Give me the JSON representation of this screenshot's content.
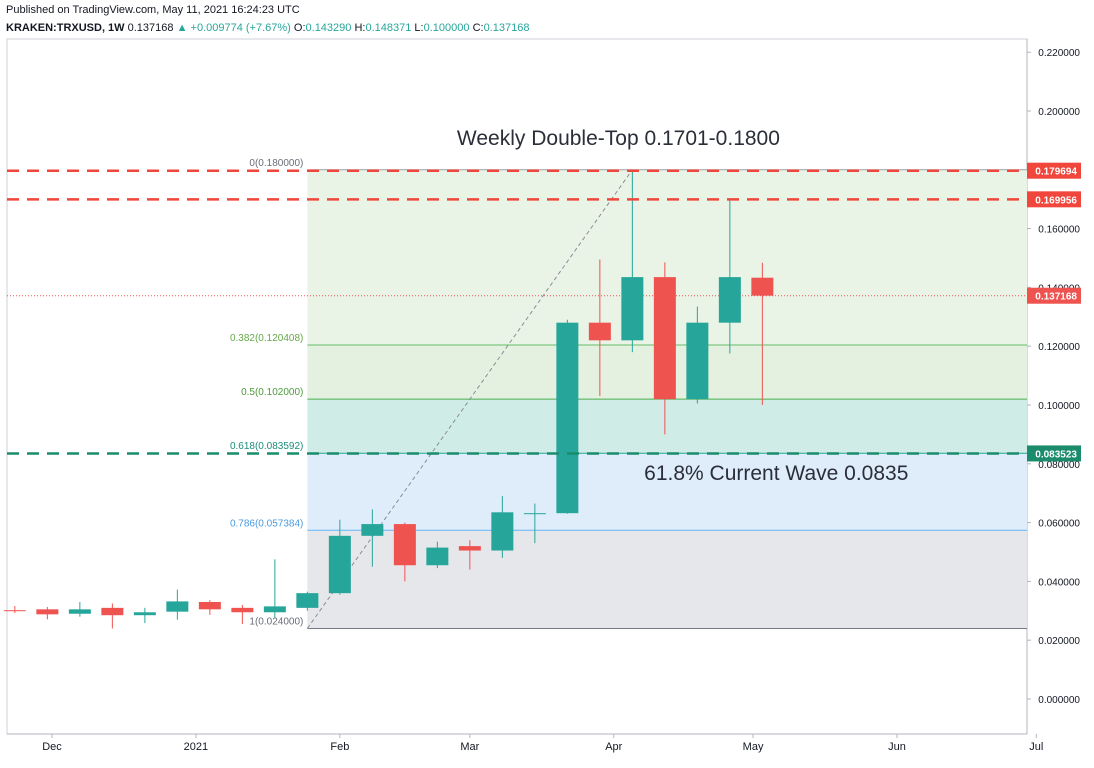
{
  "header": {
    "published": "Published on TradingView.com, May 11, 2021 16:24:23 UTC",
    "symbol": "KRAKEN:TRXUSD, 1W",
    "last": "0.137168",
    "change": "▲ +0.009774 (+7.67%)",
    "o_label": "O:",
    "o_value": "0.143290",
    "h_label": "H:",
    "h_value": "0.148371",
    "l_label": "L:",
    "l_value": "0.100000",
    "c_label": "C:",
    "c_value": "0.137168"
  },
  "colors": {
    "up": "#26a69a",
    "down": "#ef5350",
    "resistance": "#f0463c",
    "support": "#1a8b6b",
    "fib_0_382": "#e9f4e6",
    "fib_382_5": "#e4f1e0",
    "fib_5_618": "#d0ece6",
    "fib_618_786": "#dfedfb",
    "fib_786_1": "#e6e7ea"
  },
  "chart_data": {
    "type": "candlestick",
    "timeframe": "1W",
    "ylim": [
      -0.01,
      0.22
    ],
    "y_ticks": [
      "0.000000",
      "0.020000",
      "0.040000",
      "0.060000",
      "0.080000",
      "0.100000",
      "0.120000",
      "0.140000",
      "0.160000",
      "0.180000",
      "0.200000",
      "0.220000"
    ],
    "y_tick_values": [
      0,
      0.02,
      0.04,
      0.06,
      0.08,
      0.1,
      0.12,
      0.14,
      0.16,
      0.18,
      0.2,
      0.22
    ],
    "x_ticks": [
      "Dec",
      "2021",
      "Feb",
      "Mar",
      "Apr",
      "May",
      "Jun",
      "Jul"
    ],
    "x_tick_dates": [
      "2020-12-01",
      "2021-01-01",
      "2021-02-01",
      "2021-03-01",
      "2021-04-01",
      "2021-05-01",
      "2021-06-01",
      "2021-07-01"
    ],
    "candles": [
      {
        "date": "2020-11-23",
        "o": 0.0302,
        "h": 0.0316,
        "l": 0.0292,
        "c": 0.0301
      },
      {
        "date": "2020-11-30",
        "o": 0.0305,
        "h": 0.0313,
        "l": 0.0271,
        "c": 0.0288
      },
      {
        "date": "2020-12-07",
        "o": 0.029,
        "h": 0.033,
        "l": 0.028,
        "c": 0.0305
      },
      {
        "date": "2020-12-14",
        "o": 0.031,
        "h": 0.0325,
        "l": 0.024,
        "c": 0.0285
      },
      {
        "date": "2020-12-21",
        "o": 0.0285,
        "h": 0.031,
        "l": 0.0258,
        "c": 0.0295
      },
      {
        "date": "2020-12-28",
        "o": 0.0297,
        "h": 0.0372,
        "l": 0.027,
        "c": 0.0332
      },
      {
        "date": "2021-01-04",
        "o": 0.033,
        "h": 0.0336,
        "l": 0.0286,
        "c": 0.0305
      },
      {
        "date": "2021-01-11",
        "o": 0.031,
        "h": 0.032,
        "l": 0.0255,
        "c": 0.0295
      },
      {
        "date": "2021-01-18",
        "o": 0.0295,
        "h": 0.0475,
        "l": 0.0275,
        "c": 0.0315
      },
      {
        "date": "2021-01-25",
        "o": 0.031,
        "h": 0.0365,
        "l": 0.03,
        "c": 0.036
      },
      {
        "date": "2021-02-01",
        "o": 0.036,
        "h": 0.061,
        "l": 0.0355,
        "c": 0.0555
      },
      {
        "date": "2021-02-08",
        "o": 0.0555,
        "h": 0.0645,
        "l": 0.045,
        "c": 0.0595
      },
      {
        "date": "2021-02-15",
        "o": 0.0595,
        "h": 0.06,
        "l": 0.04,
        "c": 0.0455
      },
      {
        "date": "2021-02-22",
        "o": 0.0455,
        "h": 0.0535,
        "l": 0.0445,
        "c": 0.0515
      },
      {
        "date": "2021-03-01",
        "o": 0.052,
        "h": 0.054,
        "l": 0.044,
        "c": 0.0505
      },
      {
        "date": "2021-03-08",
        "o": 0.0505,
        "h": 0.069,
        "l": 0.048,
        "c": 0.0635
      },
      {
        "date": "2021-03-15",
        "o": 0.063,
        "h": 0.0665,
        "l": 0.053,
        "c": 0.0632
      },
      {
        "date": "2021-03-22",
        "o": 0.0632,
        "h": 0.129,
        "l": 0.063,
        "c": 0.128
      },
      {
        "date": "2021-03-29",
        "o": 0.128,
        "h": 0.1495,
        "l": 0.103,
        "c": 0.122
      },
      {
        "date": "2021-04-05",
        "o": 0.122,
        "h": 0.1797,
        "l": 0.118,
        "c": 0.1435
      },
      {
        "date": "2021-04-12",
        "o": 0.1435,
        "h": 0.1485,
        "l": 0.09,
        "c": 0.102
      },
      {
        "date": "2021-04-19",
        "o": 0.102,
        "h": 0.1335,
        "l": 0.1005,
        "c": 0.128
      },
      {
        "date": "2021-04-26",
        "o": 0.128,
        "h": 0.17,
        "l": 0.1175,
        "c": 0.1435
      },
      {
        "date": "2021-05-03",
        "o": 0.1433,
        "h": 0.1484,
        "l": 0.1,
        "c": 0.1372
      }
    ],
    "fibonacci": {
      "levels": [
        {
          "ratio": 0,
          "value": 0.18,
          "label": "0(0.180000)"
        },
        {
          "ratio": 0.382,
          "value": 0.120408,
          "label": "0.382(0.120408)"
        },
        {
          "ratio": 0.5,
          "value": 0.102,
          "label": "0.5(0.102000)"
        },
        {
          "ratio": 0.618,
          "value": 0.083592,
          "label": "0.618(0.083592)"
        },
        {
          "ratio": 0.786,
          "value": 0.057384,
          "label": "0.786(0.057384)"
        },
        {
          "ratio": 1,
          "value": 0.024,
          "label": "1(0.024000)"
        }
      ],
      "start_date": "2021-01-25",
      "trend_from": {
        "date": "2021-01-25",
        "value": 0.024
      },
      "trend_to": {
        "date": "2021-04-05",
        "value": 0.18
      }
    },
    "hlines": [
      {
        "value": 0.179694,
        "label": "0.179694",
        "style": "resistance"
      },
      {
        "value": 0.169956,
        "label": "0.169956",
        "style": "resistance"
      },
      {
        "value": 0.083523,
        "label": "0.083523",
        "style": "support"
      }
    ],
    "last_price": {
      "value": 0.137168,
      "label": "0.137168"
    },
    "annotations": [
      {
        "text": "Weekly Double-Top 0.1701-0.1800",
        "date": "2021-04-02",
        "value": 0.1885
      },
      {
        "text": "61.8% Current Wave 0.0835",
        "date": "2021-05-06",
        "value": 0.0745
      }
    ]
  }
}
